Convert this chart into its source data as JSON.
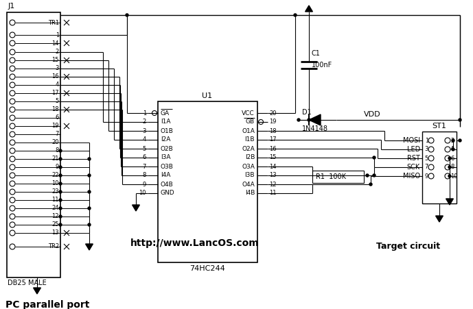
{
  "bg_color": "#ffffff",
  "line_color": "#000000",
  "url_text": "http://www.LancOS.com",
  "bottom_label": "PC parallel port",
  "ic_label": "74HC244",
  "ic_name": "U1",
  "connector_label": "J1",
  "connector_sub": "DB25 MALE",
  "st1_label": "ST1",
  "target_label": "Target circuit",
  "vdd_label": "VDD",
  "c1_label": "C1",
  "c1_value": "100nF",
  "d1_label": "D1",
  "d1_value": "1N4148",
  "r1_label": "R1",
  "r1_value": "100K",
  "figw": 6.89,
  "figh": 4.51,
  "dpi": 100
}
